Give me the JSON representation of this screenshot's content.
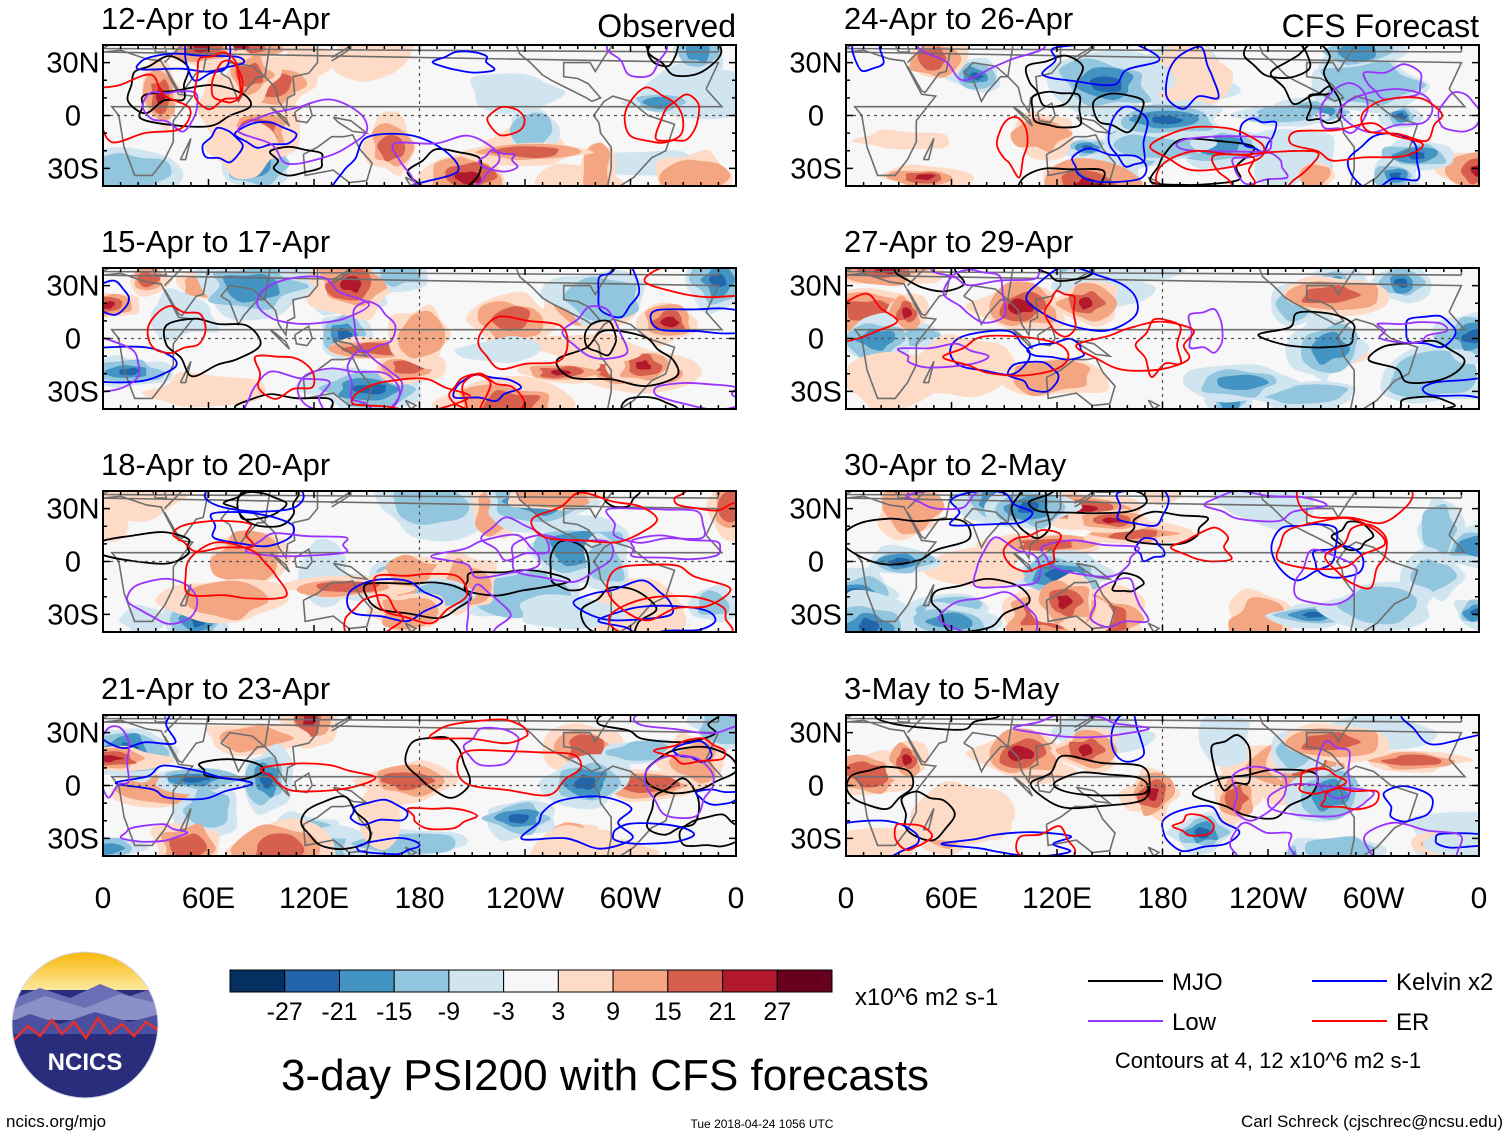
{
  "chart_data": {
    "type": "heatmap",
    "title": "3-day PSI200 with CFS forecasts",
    "units": "x10^6 m2 s-1",
    "columns": [
      {
        "label": "Observed",
        "panels": [
          "12-Apr to 14-Apr",
          "15-Apr to 17-Apr",
          "18-Apr to 20-Apr",
          "21-Apr to 23-Apr"
        ]
      },
      {
        "label": "CFS Forecast",
        "panels": [
          "24-Apr to 26-Apr",
          "27-Apr to 29-Apr",
          "30-Apr to 2-May",
          "3-May to 5-May"
        ]
      }
    ],
    "y_ticks": [
      {
        "lat": 30,
        "label": "30N"
      },
      {
        "lat": 0,
        "label": "0"
      },
      {
        "lat": -30,
        "label": "30S"
      }
    ],
    "x_ticks": [
      {
        "lon": 0,
        "label": "0"
      },
      {
        "lon": 60,
        "label": "60E"
      },
      {
        "lon": 120,
        "label": "120E"
      },
      {
        "lon": 180,
        "label": "180"
      },
      {
        "lon": 240,
        "label": "120W"
      },
      {
        "lon": 300,
        "label": "60W"
      },
      {
        "lon": 360,
        "label": "0"
      }
    ],
    "lat_range": [
      -40,
      40
    ],
    "lon_range": [
      0,
      360
    ],
    "colorbar": {
      "colors": [
        "#053061",
        "#2166ac",
        "#4393c3",
        "#92c5de",
        "#d1e5f0",
        "#f7f7f7",
        "#fddbc7",
        "#f4a582",
        "#d6604d",
        "#b2182b",
        "#67001f"
      ],
      "labels": [
        "-27",
        "-21",
        "-15",
        "-9",
        "-3",
        "3",
        "9",
        "15",
        "21",
        "27"
      ]
    },
    "legend": [
      {
        "label": "MJO",
        "color": "#000000"
      },
      {
        "label": "Kelvin x2",
        "color": "#0000ff"
      },
      {
        "label": "Low",
        "color": "#9933ff"
      },
      {
        "label": "ER",
        "color": "#ff0000"
      }
    ],
    "contour_note": "Contours at 4, 12 x10^6 m2 s-1"
  },
  "branding": {
    "logo_text": "NCICS",
    "url": "ncics.org/mjo",
    "timestamp": "Tue 2018-04-24 1056 UTC",
    "author": "Carl Schreck (cjschrec@ncsu.edu)"
  }
}
